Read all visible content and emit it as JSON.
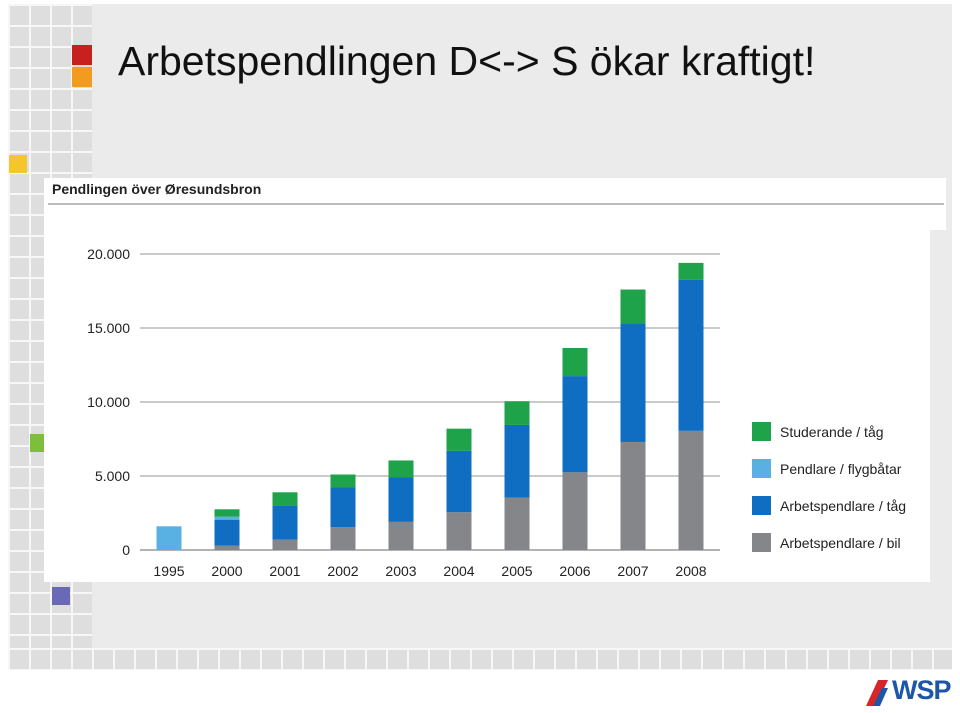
{
  "slide": {
    "title": "Arbetspendlingen D<-> S ökar kraftigt!"
  },
  "logo": {
    "text": "WSP",
    "color": "#1d56a8",
    "accent_color": "#d7262b"
  },
  "chart_data": {
    "type": "bar",
    "stacked": true,
    "title": "Pendlingen över Øresundsbron",
    "xlabel": "",
    "ylabel": "",
    "categories": [
      "1995",
      "2000",
      "2001",
      "2002",
      "2003",
      "2004",
      "2005",
      "2006",
      "2007",
      "2008"
    ],
    "ylim": [
      0,
      20000
    ],
    "yticks": [
      0,
      5000,
      10000,
      15000,
      20000
    ],
    "ytick_labels": [
      "0",
      "5.000",
      "10.000",
      "15.000",
      "20.000"
    ],
    "grid": "horizontal",
    "legend_position": "right",
    "series": [
      {
        "name": "Arbetspendlare / bil",
        "color": "#858689",
        "values": [
          0,
          300,
          700,
          1550,
          1900,
          2550,
          3550,
          5250,
          7300,
          8050
        ]
      },
      {
        "name": "Arbetspendlare / tåg",
        "color": "#0f6ec2",
        "values": [
          0,
          1750,
          2300,
          2700,
          3000,
          4150,
          4900,
          6500,
          8000,
          10200
        ]
      },
      {
        "name": "Pendlare / flygbåtar",
        "color": "#58b0e3",
        "values": [
          1600,
          200,
          0,
          0,
          0,
          0,
          0,
          0,
          0,
          0
        ]
      },
      {
        "name": "Studerande / tåg",
        "color": "#1ea24a",
        "values": [
          0,
          500,
          900,
          850,
          1150,
          1500,
          1600,
          1900,
          2300,
          1150
        ]
      }
    ],
    "legend_order": [
      "Studerande / tåg",
      "Pendlare / flygbåtar",
      "Arbetspendlare / tåg",
      "Arbetspendlare / bil"
    ]
  }
}
